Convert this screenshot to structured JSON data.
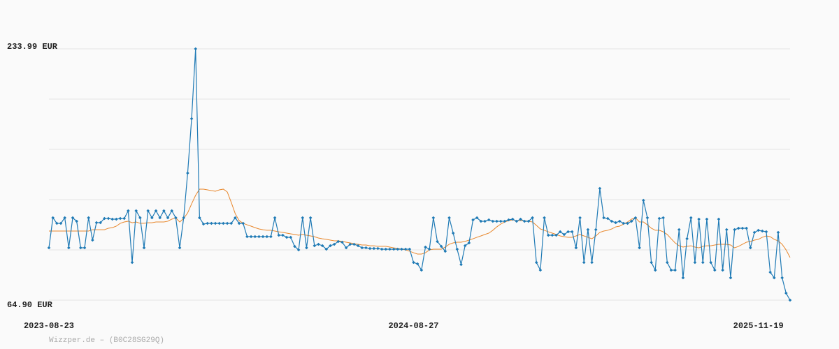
{
  "chart_data": {
    "type": "line",
    "source": "Wizzper.de – (B0C28SG29Q)",
    "categories": [
      "2023-08-23",
      null,
      null,
      null,
      null,
      null,
      null,
      null,
      null,
      null,
      null,
      null,
      null,
      null,
      null,
      null,
      null,
      null,
      null,
      null,
      null,
      null,
      null,
      null,
      null,
      null,
      null,
      null,
      null,
      null,
      null,
      null,
      null,
      null,
      null,
      null,
      null,
      null,
      null,
      null,
      null,
      null,
      null,
      null,
      null,
      null,
      null,
      null,
      null,
      null,
      null,
      null,
      null,
      null,
      null,
      null,
      null,
      null,
      null,
      null,
      null,
      null,
      null,
      null,
      null,
      null,
      null,
      null,
      null,
      null,
      null,
      null,
      null,
      null,
      null,
      null,
      null,
      null,
      null,
      null,
      null,
      null,
      null,
      null,
      null,
      null,
      null,
      null,
      null,
      null,
      null,
      null,
      "2024-08-27",
      null,
      null,
      null,
      null,
      null,
      null,
      null,
      null,
      null,
      null,
      null,
      null,
      null,
      null,
      null,
      null,
      null,
      null,
      null,
      null,
      null,
      null,
      null,
      null,
      null,
      null,
      null,
      null,
      null,
      null,
      null,
      null,
      null,
      null,
      null,
      null,
      null,
      null,
      null,
      null,
      null,
      null,
      null,
      null,
      null,
      null,
      null,
      null,
      null,
      null,
      null,
      null,
      null,
      null,
      null,
      null,
      null,
      null,
      null,
      null,
      null,
      null,
      null,
      null,
      null,
      null,
      null,
      null,
      null,
      null,
      null,
      null,
      null,
      null,
      null,
      null,
      null,
      null,
      null,
      null,
      null,
      null,
      null,
      null,
      null,
      null,
      "2025-11-19",
      null,
      null,
      null,
      null,
      null,
      null,
      null,
      null
    ],
    "series": [
      {
        "color": "#1f7ab5",
        "markers": true,
        "values": [
          100.13,
          120.32,
          116.57,
          116.57,
          120.32,
          100.13,
          120.32,
          117.98,
          100.13,
          100.13,
          120.32,
          105.29,
          117.04,
          117.04,
          119.85,
          119.85,
          119.38,
          119.38,
          119.85,
          119.85,
          125.02,
          90.26,
          125.02,
          120.32,
          100.13,
          125.02,
          120.32,
          125.02,
          120.32,
          125.02,
          120.32,
          125.02,
          120.32,
          100.13,
          120.32,
          150.38,
          187.02,
          233.99,
          120.32,
          116.1,
          116.57,
          116.57,
          116.57,
          116.57,
          116.57,
          116.57,
          116.57,
          120.32,
          116.57,
          116.57,
          107.64,
          107.64,
          107.64,
          107.64,
          107.64,
          107.64,
          107.64,
          120.32,
          108.58,
          108.58,
          107.17,
          107.17,
          101.07,
          98.72,
          120.32,
          100.13,
          120.32,
          101.54,
          102.48,
          101.54,
          99.19,
          101.54,
          102.48,
          104.35,
          103.88,
          100.13,
          102.48,
          102.48,
          101.54,
          100.13,
          100.13,
          99.66,
          99.66,
          99.66,
          99.19,
          99.19,
          99.19,
          99.19,
          99.19,
          99.19,
          99.19,
          99.19,
          90.26,
          89.32,
          85.1,
          100.6,
          99.19,
          120.32,
          104.35,
          101.07,
          97.78,
          120.32,
          109.99,
          99.19,
          88.85,
          101.54,
          103.41,
          118.91,
          120.32,
          117.98,
          117.98,
          118.91,
          117.98,
          117.98,
          117.98,
          117.98,
          118.91,
          119.38,
          117.98,
          119.38,
          117.98,
          117.98,
          120.32,
          90.26,
          85.1,
          120.32,
          108.58,
          108.58,
          108.58,
          110.93,
          109.05,
          110.93,
          110.93,
          100.13,
          120.32,
          90.26,
          112.34,
          90.26,
          112.34,
          140.05,
          120.32,
          119.85,
          117.98,
          117.04,
          117.98,
          116.57,
          116.57,
          117.98,
          120.32,
          100.13,
          132.07,
          120.32,
          90.26,
          85.1,
          119.85,
          120.32,
          90.26,
          85.1,
          85.1,
          112.34,
          79.93,
          106.23,
          120.32,
          90.26,
          119.38,
          90.26,
          119.38,
          90.26,
          85.1,
          119.38,
          85.1,
          112.34,
          79.93,
          112.34,
          113.28,
          113.28,
          113.28,
          100.13,
          110.46,
          111.87,
          111.4,
          110.93,
          83.69,
          79.93,
          110.46,
          79.93,
          69.6,
          64.9
        ]
      },
      {
        "color": "#e8872c",
        "markers": false,
        "values": [
          111.4,
          111.4,
          111.4,
          111.4,
          111.4,
          111.4,
          111.4,
          111.4,
          111.4,
          111.4,
          111.4,
          112.3,
          112.3,
          112.3,
          112.3,
          113.3,
          113.7,
          114.7,
          116.6,
          117.5,
          118.0,
          117.0,
          117.5,
          116.6,
          116.6,
          117.0,
          117.0,
          117.5,
          117.5,
          117.5,
          118.0,
          119.4,
          120.3,
          117.5,
          119.9,
          123.6,
          129.7,
          135.4,
          139.6,
          139.6,
          139.1,
          138.6,
          138.2,
          139.1,
          139.6,
          137.7,
          130.7,
          123.1,
          118.4,
          116.6,
          115.6,
          114.7,
          113.7,
          112.8,
          112.3,
          111.9,
          111.9,
          111.4,
          110.9,
          110.5,
          110.0,
          109.5,
          109.1,
          108.6,
          109.1,
          108.6,
          108.1,
          107.6,
          106.7,
          106.2,
          105.8,
          105.3,
          104.8,
          104.8,
          104.4,
          103.9,
          103.4,
          102.9,
          102.5,
          102.0,
          102.0,
          101.5,
          101.5,
          101.1,
          101.1,
          101.1,
          100.6,
          100.1,
          99.7,
          99.2,
          98.7,
          97.8,
          96.8,
          95.9,
          95.9,
          96.8,
          98.7,
          99.2,
          99.2,
          99.2,
          100.6,
          102.5,
          103.4,
          103.9,
          103.9,
          104.4,
          105.3,
          106.2,
          107.2,
          108.1,
          109.1,
          110.0,
          111.9,
          114.2,
          116.1,
          117.5,
          118.4,
          118.9,
          118.4,
          118.4,
          118.4,
          118.0,
          117.5,
          115.2,
          112.8,
          111.9,
          110.9,
          110.0,
          109.1,
          108.1,
          107.6,
          107.2,
          107.2,
          108.1,
          109.1,
          108.1,
          107.2,
          106.2,
          108.1,
          110.5,
          111.4,
          111.9,
          112.8,
          114.2,
          114.7,
          116.1,
          117.5,
          119.4,
          120.3,
          117.5,
          117.5,
          115.6,
          113.3,
          111.9,
          111.9,
          110.9,
          109.1,
          106.2,
          103.4,
          101.5,
          100.6,
          101.1,
          101.5,
          100.6,
          100.1,
          101.1,
          101.5,
          101.5,
          102.0,
          102.5,
          102.5,
          102.5,
          102.0,
          100.1,
          101.1,
          102.5,
          103.9,
          104.4,
          105.3,
          105.8,
          107.2,
          108.1,
          107.6,
          105.8,
          104.8,
          102.5,
          98.7,
          93.6
        ]
      }
    ],
    "ylim": [
      64.9,
      233.99
    ],
    "yticks": [
      {
        "value": 64.9,
        "label": "64.90 EUR"
      },
      {
        "value": 233.99,
        "label": "233.99 EUR"
      }
    ],
    "ygrid": [
      64.9,
      98.72,
      132.54,
      166.36,
      200.17,
      233.99
    ],
    "grid": true
  }
}
